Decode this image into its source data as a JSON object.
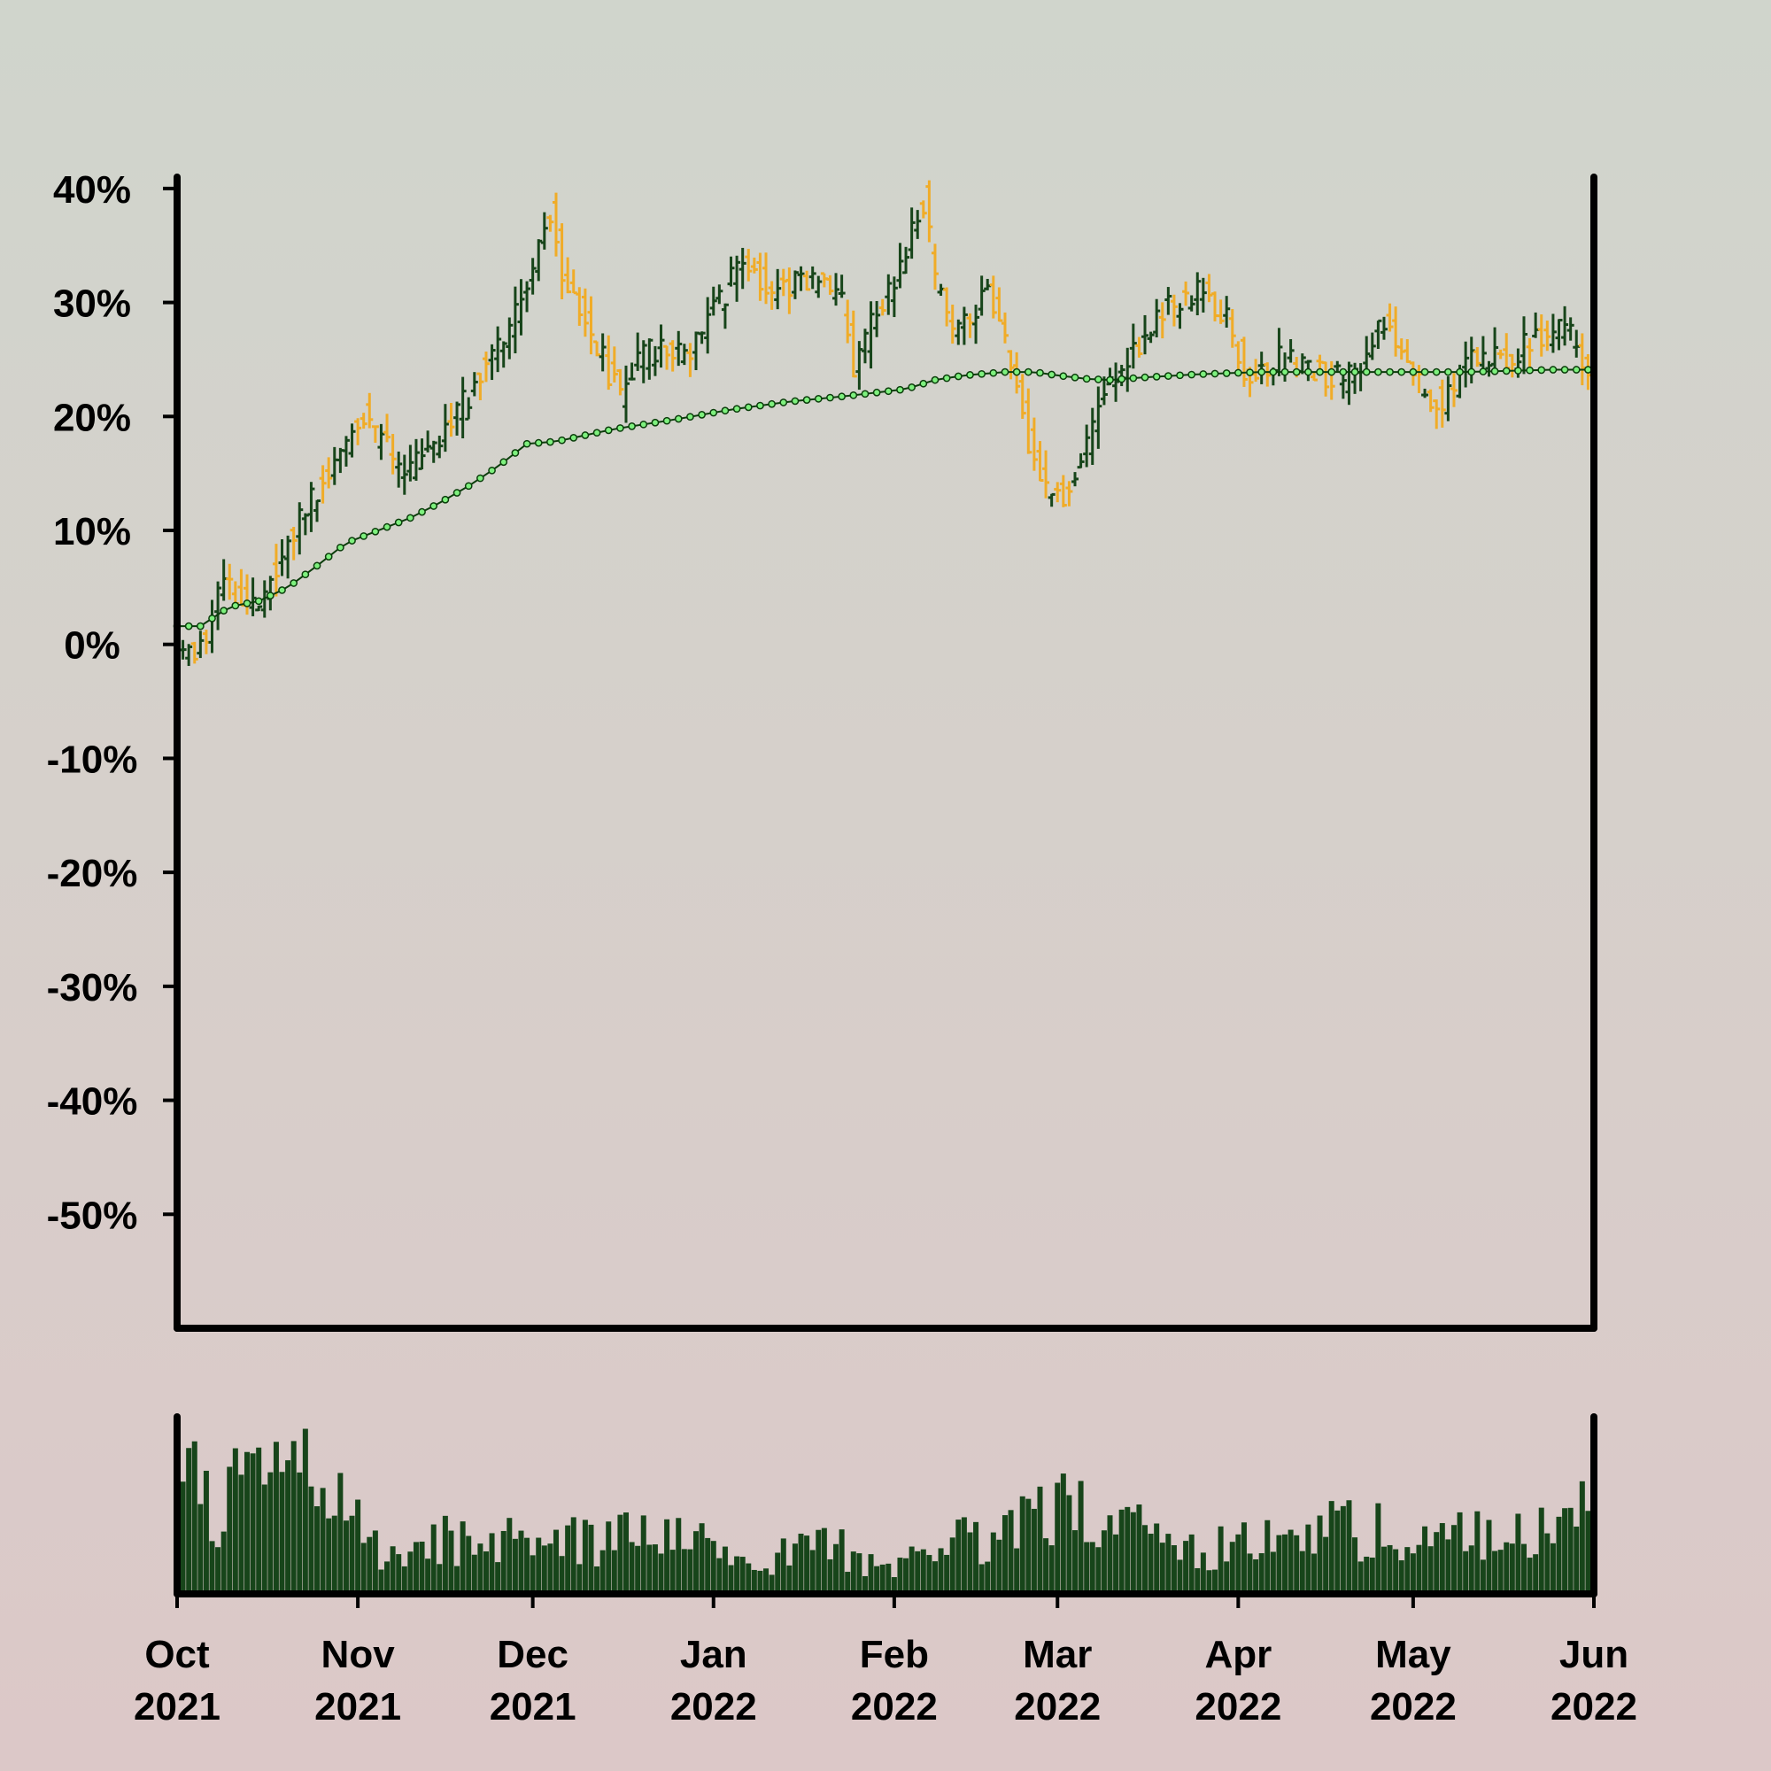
{
  "colors": {
    "up": "#17451a",
    "down": "#f0ac28",
    "ma_line": "#0b3d0b",
    "ma_marker": "#7ef07e",
    "volume": "#17451a",
    "axis": "#000000"
  },
  "chart_data": {
    "type": "ohlc",
    "title": "",
    "xlabel": "",
    "ylabel": "",
    "x_range": [
      "2021-10-01",
      "2022-06-01"
    ],
    "ylim": [
      -60,
      41
    ],
    "y_unit": "%",
    "y_ticks": [
      {
        "value": 40,
        "label": "40%"
      },
      {
        "value": 30,
        "label": "30%"
      },
      {
        "value": 20,
        "label": "20%"
      },
      {
        "value": 10,
        "label": "10%"
      },
      {
        "value": 0,
        "label": "0%"
      },
      {
        "value": -10,
        "label": "-10%"
      },
      {
        "value": -20,
        "label": "-20%"
      },
      {
        "value": -30,
        "label": "-30%"
      },
      {
        "value": -40,
        "label": "-40%"
      },
      {
        "value": -50,
        "label": "-50%"
      }
    ],
    "x_ticks": [
      {
        "date": "2021-10-01",
        "month": "Oct",
        "year": "2021"
      },
      {
        "date": "2021-11-01",
        "month": "Nov",
        "year": "2021"
      },
      {
        "date": "2021-12-01",
        "month": "Dec",
        "year": "2021"
      },
      {
        "date": "2022-01-01",
        "month": "Jan",
        "year": "2022"
      },
      {
        "date": "2022-02-01",
        "month": "Feb",
        "year": "2022"
      },
      {
        "date": "2022-03-01",
        "month": "Mar",
        "year": "2022"
      },
      {
        "date": "2022-04-01",
        "month": "Apr",
        "year": "2022"
      },
      {
        "date": "2022-05-01",
        "month": "May",
        "year": "2022"
      },
      {
        "date": "2022-06-01",
        "month": "Jun",
        "year": "2022"
      }
    ],
    "grid": false,
    "legend": "none",
    "price_keypoints": [
      [
        "2021-10-01",
        0
      ],
      [
        "2021-10-05",
        -1
      ],
      [
        "2021-10-10",
        5
      ],
      [
        "2021-10-15",
        3
      ],
      [
        "2021-10-20",
        8
      ],
      [
        "2021-10-25",
        13
      ],
      [
        "2021-10-30",
        17
      ],
      [
        "2021-11-03",
        20
      ],
      [
        "2021-11-07",
        17
      ],
      [
        "2021-11-10",
        15
      ],
      [
        "2021-11-15",
        17
      ],
      [
        "2021-11-20",
        21
      ],
      [
        "2021-11-25",
        26
      ],
      [
        "2021-11-28",
        28
      ],
      [
        "2021-12-02",
        33
      ],
      [
        "2021-12-05",
        38
      ],
      [
        "2021-12-07",
        33
      ],
      [
        "2021-12-10",
        30
      ],
      [
        "2021-12-14",
        25
      ],
      [
        "2021-12-17",
        22
      ],
      [
        "2021-12-20",
        25
      ],
      [
        "2021-12-24",
        26
      ],
      [
        "2021-12-29",
        26
      ],
      [
        "2022-01-03",
        30
      ],
      [
        "2022-01-07",
        34
      ],
      [
        "2022-01-12",
        31
      ],
      [
        "2022-01-18",
        32
      ],
      [
        "2022-01-24",
        30
      ],
      [
        "2022-01-26",
        24
      ],
      [
        "2022-01-30",
        29
      ],
      [
        "2022-02-03",
        33
      ],
      [
        "2022-02-07",
        39
      ],
      [
        "2022-02-09",
        32
      ],
      [
        "2022-02-12",
        28
      ],
      [
        "2022-02-15",
        29
      ],
      [
        "2022-02-18",
        31
      ],
      [
        "2022-02-22",
        25
      ],
      [
        "2022-02-25",
        18
      ],
      [
        "2022-02-28",
        14
      ],
      [
        "2022-03-03",
        13
      ],
      [
        "2022-03-06",
        16
      ],
      [
        "2022-03-10",
        22
      ],
      [
        "2022-03-15",
        26
      ],
      [
        "2022-03-20",
        29
      ],
      [
        "2022-03-26",
        31
      ],
      [
        "2022-03-31",
        29
      ],
      [
        "2022-04-03",
        24
      ],
      [
        "2022-04-10",
        25
      ],
      [
        "2022-04-20",
        23
      ],
      [
        "2022-04-27",
        28
      ],
      [
        "2022-05-03",
        23
      ],
      [
        "2022-05-07",
        21
      ],
      [
        "2022-05-12",
        25
      ],
      [
        "2022-05-18",
        25
      ],
      [
        "2022-05-24",
        27
      ],
      [
        "2022-05-28",
        28
      ],
      [
        "2022-06-01",
        24
      ]
    ],
    "moving_average": [
      [
        "2021-10-01",
        1.6
      ],
      [
        "2021-10-05",
        1.6
      ],
      [
        "2021-10-10",
        3.3
      ],
      [
        "2021-10-15",
        3.8
      ],
      [
        "2021-10-20",
        5
      ],
      [
        "2021-10-25",
        6.9
      ],
      [
        "2021-10-30",
        8.9
      ],
      [
        "2021-11-05",
        10.1
      ],
      [
        "2021-11-10",
        11.1
      ],
      [
        "2021-11-15",
        12.4
      ],
      [
        "2021-11-20",
        13.9
      ],
      [
        "2021-11-25",
        15.6
      ],
      [
        "2021-11-30",
        17.6
      ],
      [
        "2021-12-05",
        17.8
      ],
      [
        "2021-12-15",
        18.9
      ],
      [
        "2021-12-25",
        19.7
      ],
      [
        "2022-01-04",
        20.6
      ],
      [
        "2022-01-14",
        21.3
      ],
      [
        "2022-01-24",
        21.8
      ],
      [
        "2022-02-03",
        22.4
      ],
      [
        "2022-02-08",
        23.2
      ],
      [
        "2022-02-13",
        23.6
      ],
      [
        "2022-02-20",
        23.9
      ],
      [
        "2022-02-25",
        23.9
      ],
      [
        "2022-03-01",
        23.6
      ],
      [
        "2022-03-06",
        23.3
      ],
      [
        "2022-03-10",
        23.2
      ],
      [
        "2022-03-15",
        23.4
      ],
      [
        "2022-03-25",
        23.7
      ],
      [
        "2022-04-05",
        23.9
      ],
      [
        "2022-04-20",
        23.9
      ],
      [
        "2022-05-10",
        23.9
      ],
      [
        "2022-05-25",
        24.1
      ],
      [
        "2022-06-01",
        24.1
      ]
    ],
    "volume_keypoints": [
      [
        "2021-10-01",
        0.95
      ],
      [
        "2021-10-07",
        0.55
      ],
      [
        "2021-10-14",
        0.65
      ],
      [
        "2021-10-21",
        0.78
      ],
      [
        "2021-10-28",
        0.6
      ],
      [
        "2021-11-04",
        0.3
      ],
      [
        "2021-11-12",
        0.3
      ],
      [
        "2021-11-20",
        0.35
      ],
      [
        "2021-12-01",
        0.3
      ],
      [
        "2021-12-15",
        0.35
      ],
      [
        "2021-12-30",
        0.3
      ],
      [
        "2022-01-10",
        0.2
      ],
      [
        "2022-01-20",
        0.35
      ],
      [
        "2022-01-30",
        0.12
      ],
      [
        "2022-02-10",
        0.32
      ],
      [
        "2022-02-20",
        0.4
      ],
      [
        "2022-03-01",
        0.55
      ],
      [
        "2022-03-10",
        0.45
      ],
      [
        "2022-03-20",
        0.3
      ],
      [
        "2022-04-01",
        0.28
      ],
      [
        "2022-04-15",
        0.45
      ],
      [
        "2022-05-01",
        0.35
      ],
      [
        "2022-05-15",
        0.35
      ],
      [
        "2022-05-28",
        0.45
      ],
      [
        "2022-06-01",
        0.5
      ]
    ]
  }
}
